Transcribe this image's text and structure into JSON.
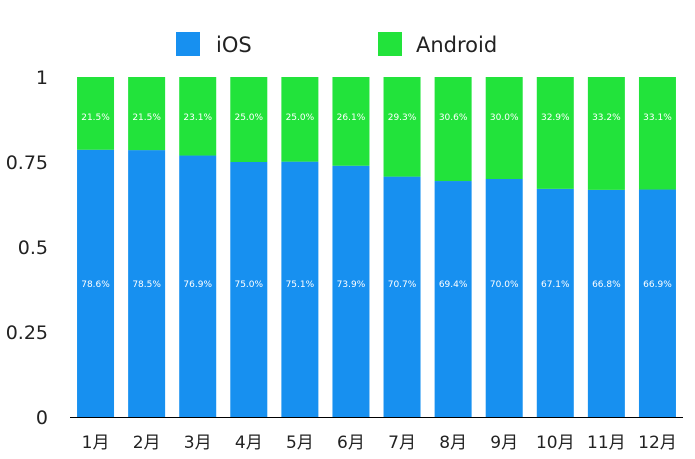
{
  "chart_data": {
    "type": "bar",
    "stacked": true,
    "categories": [
      "1月",
      "2月",
      "3月",
      "4月",
      "5月",
      "6月",
      "7月",
      "8月",
      "9月",
      "10月",
      "11月",
      "12月"
    ],
    "series": [
      {
        "name": "iOS",
        "color": "#1790f0",
        "values": [
          0.786,
          0.785,
          0.769,
          0.75,
          0.751,
          0.739,
          0.707,
          0.694,
          0.7,
          0.671,
          0.668,
          0.669
        ],
        "labels": [
          "78.6%",
          "78.5%",
          "76.9%",
          "75.0%",
          "75.1%",
          "73.9%",
          "70.7%",
          "69.4%",
          "70.0%",
          "67.1%",
          "66.8%",
          "66.9%"
        ]
      },
      {
        "name": "Android",
        "color": "#22e33b",
        "values": [
          0.215,
          0.215,
          0.231,
          0.25,
          0.25,
          0.261,
          0.293,
          0.306,
          0.3,
          0.329,
          0.332,
          0.331
        ],
        "labels": [
          "21.5%",
          "21.5%",
          "23.1%",
          "25.0%",
          "25.0%",
          "26.1%",
          "29.3%",
          "30.6%",
          "30.0%",
          "32.9%",
          "33.2%",
          "33.1%"
        ]
      }
    ],
    "ylim": [
      0,
      1
    ],
    "yticks": [
      0,
      0.25,
      0.5,
      0.75,
      1
    ],
    "ytick_labels": [
      "0",
      "0.25",
      "0.5",
      "0.75",
      "1"
    ],
    "legend_position": "top-center",
    "grid": false
  }
}
